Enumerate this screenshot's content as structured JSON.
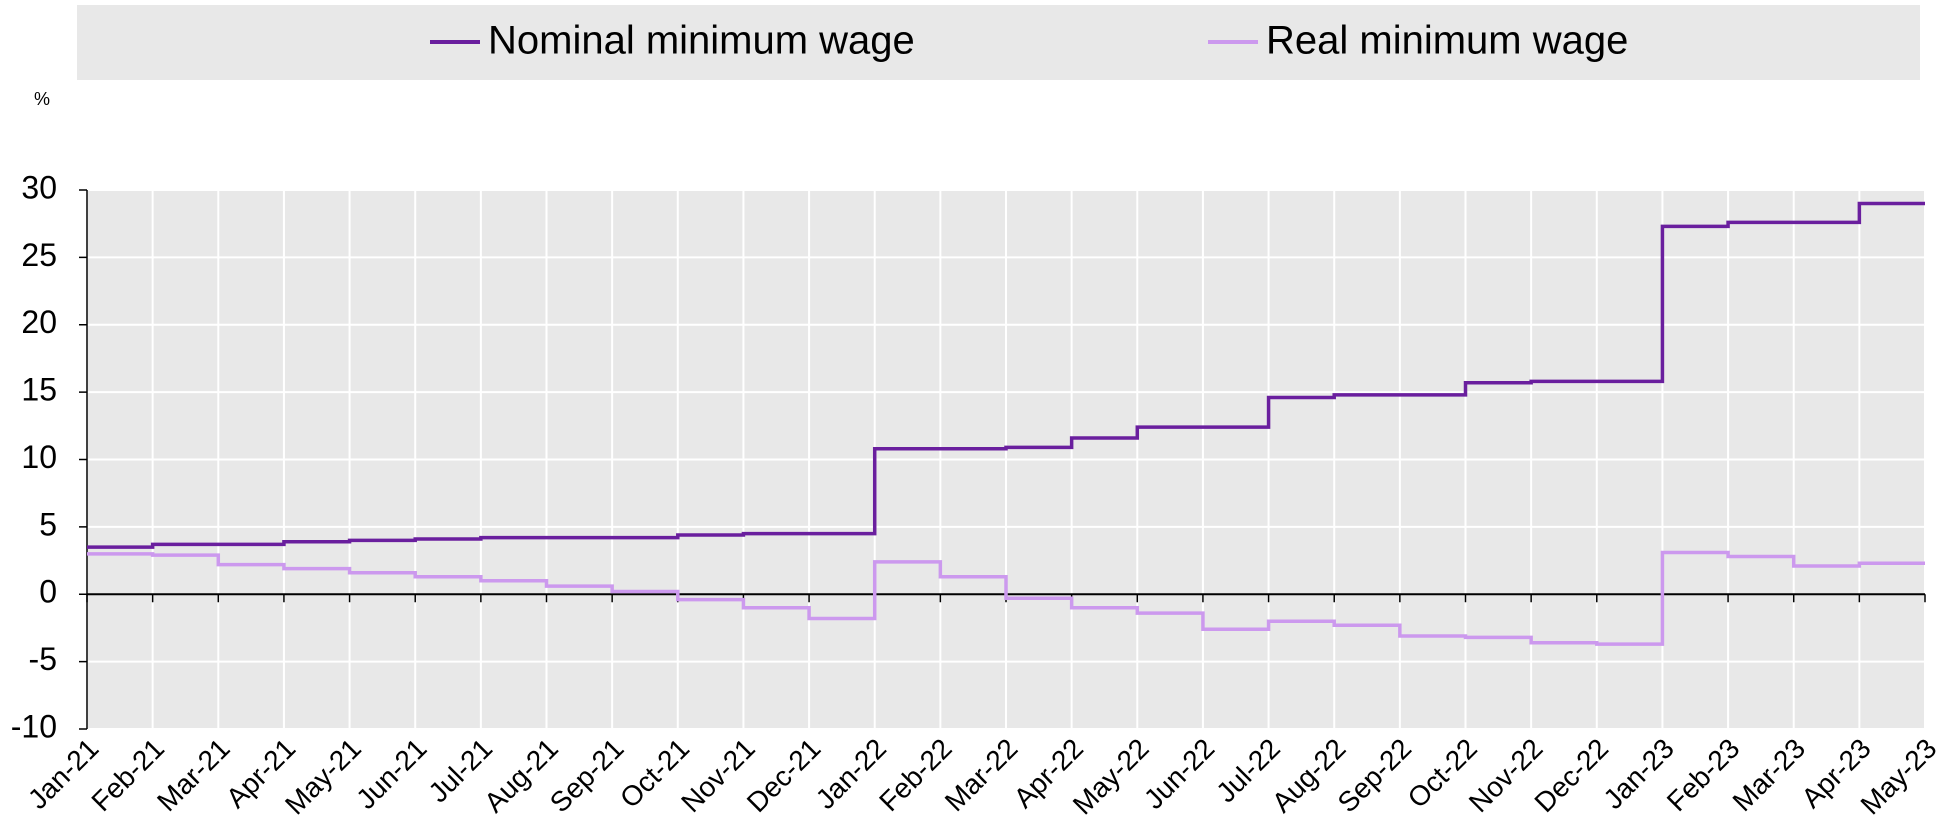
{
  "chart_data": {
    "type": "step",
    "unit_label": "%",
    "categories": [
      "Jan-21",
      "Feb-21",
      "Mar-21",
      "Apr-21",
      "May-21",
      "Jun-21",
      "Jul-21",
      "Aug-21",
      "Sep-21",
      "Oct-21",
      "Nov-21",
      "Dec-21",
      "Jan-22",
      "Feb-22",
      "Mar-22",
      "Apr-22",
      "May-22",
      "Jun-22",
      "Jul-22",
      "Aug-22",
      "Sep-22",
      "Oct-22",
      "Nov-22",
      "Dec-22",
      "Jan-23",
      "Feb-23",
      "Mar-23",
      "Apr-23",
      "May-23"
    ],
    "series": [
      {
        "name": "Nominal minimum wage",
        "color": "#6a1f9e",
        "values": [
          3.5,
          3.7,
          3.7,
          3.9,
          4.0,
          4.1,
          4.2,
          4.2,
          4.2,
          4.4,
          4.5,
          4.5,
          10.8,
          10.8,
          10.9,
          11.6,
          12.4,
          12.4,
          14.6,
          14.8,
          14.8,
          15.7,
          15.8,
          15.8,
          27.3,
          27.6,
          27.6,
          29.0,
          29.0
        ]
      },
      {
        "name": "Real minimum wage",
        "color": "#cc99ee",
        "values": [
          3.0,
          2.9,
          2.2,
          1.9,
          1.6,
          1.3,
          1.0,
          0.6,
          0.2,
          -0.4,
          -1.0,
          -1.8,
          2.4,
          1.3,
          -0.3,
          -1.0,
          -1.4,
          -2.6,
          -2.0,
          -2.3,
          -3.1,
          -3.2,
          -3.6,
          -3.7,
          3.1,
          2.8,
          2.1,
          2.3,
          2.3
        ]
      }
    ],
    "ylim": [
      -10,
      30
    ],
    "yticks": [
      -10,
      -5,
      0,
      5,
      10,
      15,
      20,
      25,
      30
    ],
    "grid": true,
    "legend": "top"
  }
}
